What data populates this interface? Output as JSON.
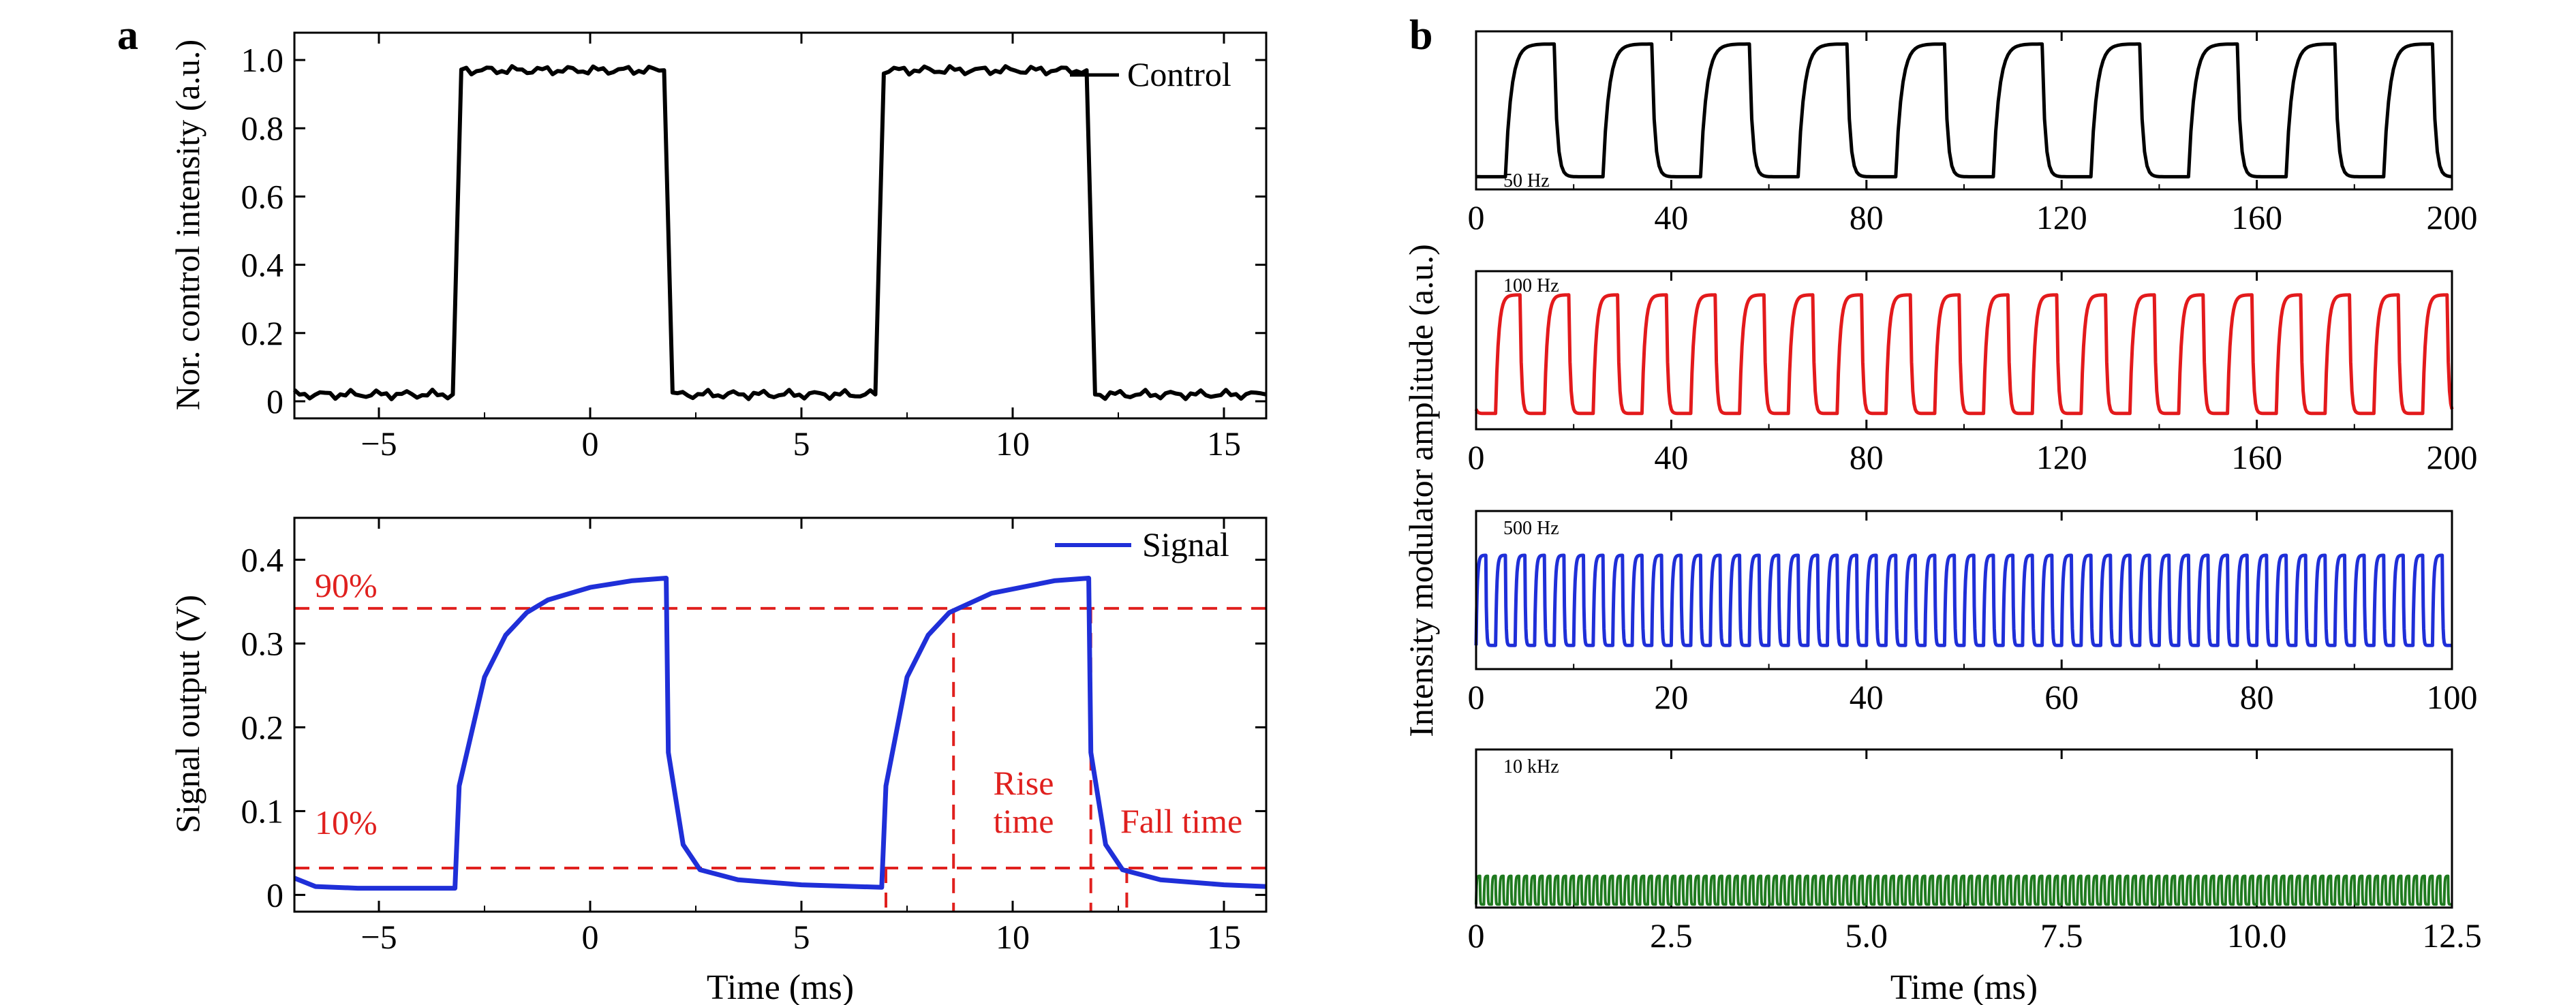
{
  "figure": {
    "colors": {
      "control": "#000000",
      "signal": "#1f2fd8",
      "reference": "#e0201e",
      "hz50": "#000000",
      "hz100": "#e31a1c",
      "hz500": "#1f2fd8",
      "khz10": "#1f7a1f"
    }
  },
  "chart_data": [
    {
      "id": "a_top",
      "panel_label": "a",
      "type": "line",
      "ylabel": "Nor. control intensity (a.u.)",
      "xlabel": "",
      "xlim": [
        -7,
        16
      ],
      "ylim": [
        -0.05,
        1.08
      ],
      "xticks": [
        -5,
        0,
        5,
        10,
        15
      ],
      "xtick_labels": [
        "−5",
        "0",
        "5",
        "10",
        "15"
      ],
      "yticks": [
        0,
        0.2,
        0.4,
        0.6,
        0.8,
        1.0
      ],
      "ytick_labels": [
        "0",
        "0.2",
        "0.4",
        "0.6",
        "0.8",
        "1.0"
      ],
      "grid": false,
      "legend_position": "top-right",
      "series": [
        {
          "name": "Control",
          "color": "#000000",
          "x": [
            -7,
            -3.25,
            -3.15,
            -3.05,
            1.75,
            1.85,
            1.95,
            6.75,
            6.85,
            6.95,
            11.75,
            11.85,
            11.95,
            16
          ],
          "y": [
            0.02,
            0.02,
            0.5,
            0.97,
            0.97,
            0.5,
            0.02,
            0.02,
            0.5,
            0.97,
            0.97,
            0.5,
            0.02,
            0.02
          ]
        }
      ]
    },
    {
      "id": "a_bottom",
      "type": "line",
      "ylabel": "Signal output (V)",
      "xlabel": "Time (ms)",
      "xlim": [
        -7,
        16
      ],
      "ylim": [
        -0.02,
        0.45
      ],
      "xticks": [
        -5,
        0,
        5,
        10,
        15
      ],
      "xtick_labels": [
        "−5",
        "0",
        "5",
        "10",
        "15"
      ],
      "yticks": [
        0,
        0.1,
        0.2,
        0.3,
        0.4
      ],
      "ytick_labels": [
        "0",
        "0.1",
        "0.2",
        "0.3",
        "0.4"
      ],
      "grid": false,
      "legend_position": "top-right",
      "series": [
        {
          "name": "Signal",
          "color": "#1f2fd8",
          "x": [
            -7,
            -6.5,
            -5.5,
            -3.2,
            -3.1,
            -2.5,
            -2,
            -1.5,
            -1,
            0,
            1,
            1.8,
            1.85,
            2.2,
            2.6,
            3.5,
            5,
            6.9,
            7.0,
            7.5,
            8,
            8.5,
            9.5,
            11,
            11.8,
            11.85,
            12.2,
            12.6,
            13.5,
            15,
            16
          ],
          "y": [
            0.02,
            0.01,
            0.008,
            0.008,
            0.13,
            0.26,
            0.31,
            0.337,
            0.352,
            0.367,
            0.375,
            0.378,
            0.17,
            0.06,
            0.03,
            0.018,
            0.012,
            0.009,
            0.13,
            0.26,
            0.31,
            0.337,
            0.36,
            0.375,
            0.378,
            0.17,
            0.06,
            0.03,
            0.018,
            0.012,
            0.01
          ]
        }
      ],
      "reference_lines": [
        {
          "label": "90%",
          "y": 0.342
        },
        {
          "label": "10%",
          "y": 0.032
        }
      ],
      "markers_x": [
        7.0,
        8.6,
        11.85,
        12.7
      ],
      "annotations": [
        "Rise",
        "time",
        "Fall time"
      ]
    },
    {
      "id": "b1",
      "panel_label": "b",
      "type": "line",
      "frequency_label": "50 Hz",
      "xlim": [
        0,
        200
      ],
      "xticks": [
        0,
        40,
        80,
        120,
        160,
        200
      ],
      "xtick_labels": [
        "0",
        "40",
        "80",
        "120",
        "160",
        "200"
      ],
      "period": 20,
      "phase": 6,
      "duty": 0.5,
      "color": "#000000",
      "y_high": 0.92,
      "y_low": 0.08
    },
    {
      "id": "b2",
      "type": "line",
      "frequency_label": "100 Hz",
      "xlim": [
        0,
        200
      ],
      "xticks": [
        0,
        40,
        80,
        120,
        160,
        200
      ],
      "xtick_labels": [
        "0",
        "40",
        "80",
        "120",
        "160",
        "200"
      ],
      "period": 10,
      "phase": 4,
      "duty": 0.5,
      "color": "#e31a1c",
      "y_high": 0.85,
      "y_low": 0.1
    },
    {
      "id": "b3",
      "type": "line",
      "frequency_label": "500 Hz",
      "xlim": [
        0,
        100
      ],
      "xticks": [
        0,
        20,
        40,
        60,
        80,
        100
      ],
      "xtick_labels": [
        "0",
        "20",
        "40",
        "60",
        "80",
        "100"
      ],
      "period": 2,
      "phase": 0,
      "duty": 0.5,
      "color": "#1f2fd8",
      "y_high": 0.72,
      "y_low": 0.15
    },
    {
      "id": "b4",
      "type": "line",
      "frequency_label": "10 kHz",
      "xlabel": "Time (ms)",
      "xlim": [
        0,
        12.5
      ],
      "xticks": [
        0,
        2.5,
        5.0,
        7.5,
        10.0,
        12.5
      ],
      "xtick_labels": [
        "0",
        "2.5",
        "5.0",
        "7.5",
        "10.0",
        "12.5"
      ],
      "period": 0.1,
      "phase": 0,
      "duty": 0.5,
      "color": "#1f7a1f",
      "y_high": 0.2,
      "y_low": 0.02
    }
  ],
  "panel_b_ylabel": "Intensity modulator amplitude (a.u.)"
}
